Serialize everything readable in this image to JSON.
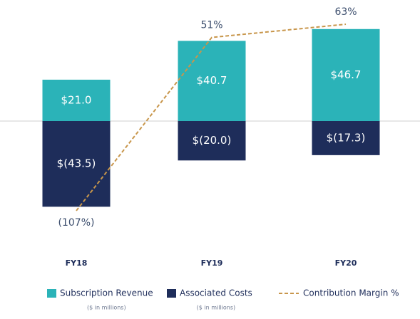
{
  "chart_data": {
    "type": "bar",
    "categories": [
      "FY18",
      "FY19",
      "FY20"
    ],
    "ylim": [
      -60,
      60
    ],
    "y2lim": [
      -133,
      82.5
    ],
    "series": [
      {
        "name": "Subscription Revenue",
        "note": "($ in millions)",
        "color": "#2bb3b8",
        "type": "bar",
        "values": [
          21.0,
          40.7,
          46.7
        ],
        "value_labels": [
          "$21.0",
          "$40.7",
          "$46.7"
        ]
      },
      {
        "name": "Associated Costs",
        "note": "($ in millions)",
        "color": "#1e2d5a",
        "type": "bar",
        "values": [
          -43.5,
          -20.0,
          -17.3
        ],
        "value_labels": [
          "$(43.5)",
          "$(20.0)",
          "$(17.3)"
        ]
      },
      {
        "name": "Contribution Margin %",
        "color": "#c8964b",
        "type": "line",
        "axis": "y2",
        "values": [
          -107,
          51,
          63
        ],
        "value_labels": [
          "(107%)",
          "51%",
          "63%"
        ]
      }
    ]
  }
}
